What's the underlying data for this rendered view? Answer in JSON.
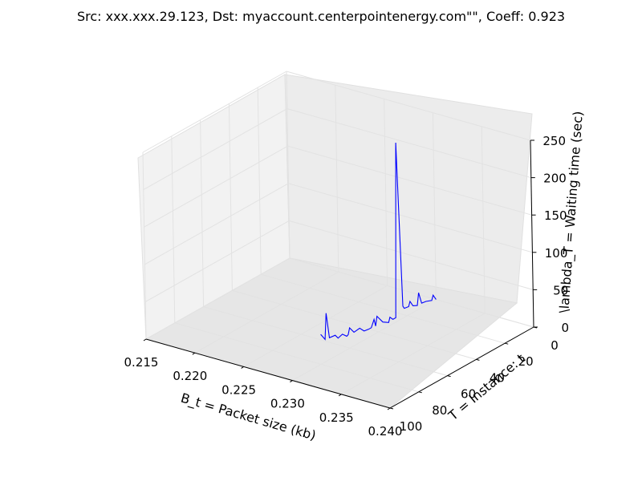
{
  "chart_data": {
    "type": "line",
    "projection": "3d",
    "title": "Src: xxx.xxx.29.123, Dst: myaccount.centerpointenergy.com\"\", Coeff: 0.923",
    "xlabel": "B_t = Packet size (kb)",
    "ylabel": "T = Instance: t",
    "zlabel": "\\lambda_T = Waiting time (sec)",
    "xlim": [
      0.215,
      0.24
    ],
    "ylim": [
      0,
      100
    ],
    "zlim": [
      0,
      250
    ],
    "x_ticks": [
      "0.215",
      "0.220",
      "0.225",
      "0.230",
      "0.235",
      "0.240"
    ],
    "y_ticks": [
      "0",
      "20",
      "40",
      "60",
      "80",
      "100"
    ],
    "z_ticks": [
      "0",
      "50",
      "100",
      "150",
      "200",
      "250"
    ],
    "grid": true,
    "pane_color": "#f2f2f2",
    "series": [
      {
        "color": "#0000ff",
        "points": [
          {
            "x": 0.23,
            "y": 0,
            "z": 0
          },
          {
            "x": 0.23,
            "y": 2,
            "z": 8
          },
          {
            "x": 0.23,
            "y": 3,
            "z": 2
          },
          {
            "x": 0.23,
            "y": 7,
            "z": 5
          },
          {
            "x": 0.23,
            "y": 10,
            "z": 6
          },
          {
            "x": 0.23,
            "y": 12,
            "z": 22
          },
          {
            "x": 0.23,
            "y": 13,
            "z": 6
          },
          {
            "x": 0.23,
            "y": 16,
            "z": 9
          },
          {
            "x": 0.23,
            "y": 18,
            "z": 17
          },
          {
            "x": 0.23,
            "y": 19,
            "z": 11
          },
          {
            "x": 0.23,
            "y": 22,
            "z": 12
          },
          {
            "x": 0.23,
            "y": 23,
            "z": 16
          },
          {
            "x": 0.23,
            "y": 26,
            "z": 238
          },
          {
            "x": 0.23,
            "y": 28,
            "z": 6
          },
          {
            "x": 0.23,
            "y": 30,
            "z": 6
          },
          {
            "x": 0.23,
            "y": 32,
            "z": 11
          },
          {
            "x": 0.23,
            "y": 33,
            "z": 5
          },
          {
            "x": 0.23,
            "y": 37,
            "z": 10
          },
          {
            "x": 0.23,
            "y": 41,
            "z": 22
          },
          {
            "x": 0.23,
            "y": 42,
            "z": 10
          },
          {
            "x": 0.23,
            "y": 43,
            "z": 20
          },
          {
            "x": 0.23,
            "y": 45,
            "z": 11
          },
          {
            "x": 0.23,
            "y": 47,
            "z": 11
          },
          {
            "x": 0.23,
            "y": 50,
            "z": 12
          },
          {
            "x": 0.23,
            "y": 53,
            "z": 19
          },
          {
            "x": 0.23,
            "y": 57,
            "z": 18
          },
          {
            "x": 0.23,
            "y": 60,
            "z": 27
          },
          {
            "x": 0.23,
            "y": 61,
            "z": 19
          },
          {
            "x": 0.23,
            "y": 62,
            "z": 18
          },
          {
            "x": 0.23,
            "y": 65,
            "z": 24
          },
          {
            "x": 0.23,
            "y": 68,
            "z": 22
          },
          {
            "x": 0.23,
            "y": 70,
            "z": 28
          },
          {
            "x": 0.23,
            "y": 74,
            "z": 29
          },
          {
            "x": 0.23,
            "y": 76,
            "z": 64
          },
          {
            "x": 0.23,
            "y": 77,
            "z": 30
          },
          {
            "x": 0.23,
            "y": 80,
            "z": 40
          }
        ]
      }
    ]
  }
}
